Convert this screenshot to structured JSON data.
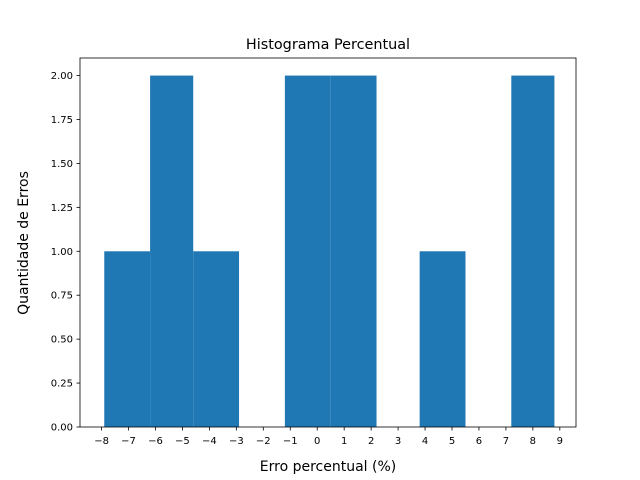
{
  "chart_data": {
    "type": "bar",
    "title": "Histograma Percentual",
    "xlabel": "Erro percentual (%)",
    "ylabel": "Quantidade de Erros",
    "bar_color": "#1f77b4",
    "xlim": [
      -8.8,
      9.6
    ],
    "ylim": [
      0,
      2.1
    ],
    "grid": false,
    "bins": [
      {
        "x0": -7.9,
        "x1": -6.2,
        "value": 1
      },
      {
        "x0": -6.2,
        "x1": -4.6,
        "value": 2
      },
      {
        "x0": -4.6,
        "x1": -2.9,
        "value": 1
      },
      {
        "x0": -2.9,
        "x1": -1.2,
        "value": 0
      },
      {
        "x0": -1.2,
        "x1": 0.5,
        "value": 2
      },
      {
        "x0": 0.5,
        "x1": 2.2,
        "value": 2
      },
      {
        "x0": 2.2,
        "x1": 3.8,
        "value": 0
      },
      {
        "x0": 3.8,
        "x1": 5.5,
        "value": 1
      },
      {
        "x0": 5.5,
        "x1": 7.2,
        "value": 0
      },
      {
        "x0": 7.2,
        "x1": 8.8,
        "value": 2
      }
    ],
    "x_ticks": [
      {
        "value": -8,
        "label": "−8"
      },
      {
        "value": -7,
        "label": "−7"
      },
      {
        "value": -6,
        "label": "−6"
      },
      {
        "value": -5,
        "label": "−5"
      },
      {
        "value": -4,
        "label": "−4"
      },
      {
        "value": -3,
        "label": "−3"
      },
      {
        "value": -2,
        "label": "−2"
      },
      {
        "value": -1,
        "label": "−1"
      },
      {
        "value": 0,
        "label": "0"
      },
      {
        "value": 1,
        "label": "1"
      },
      {
        "value": 2,
        "label": "2"
      },
      {
        "value": 3,
        "label": "3"
      },
      {
        "value": 4,
        "label": "4"
      },
      {
        "value": 5,
        "label": "5"
      },
      {
        "value": 6,
        "label": "6"
      },
      {
        "value": 7,
        "label": "7"
      },
      {
        "value": 8,
        "label": "8"
      },
      {
        "value": 9,
        "label": "9"
      }
    ],
    "y_ticks": [
      {
        "value": 0,
        "label": "0.00"
      },
      {
        "value": 0.25,
        "label": "0.25"
      },
      {
        "value": 0.5,
        "label": "0.50"
      },
      {
        "value": 0.75,
        "label": "0.75"
      },
      {
        "value": 1,
        "label": "1.00"
      },
      {
        "value": 1.25,
        "label": "1.25"
      },
      {
        "value": 1.5,
        "label": "1.50"
      },
      {
        "value": 1.75,
        "label": "1.75"
      },
      {
        "value": 2,
        "label": "2.00"
      }
    ]
  }
}
